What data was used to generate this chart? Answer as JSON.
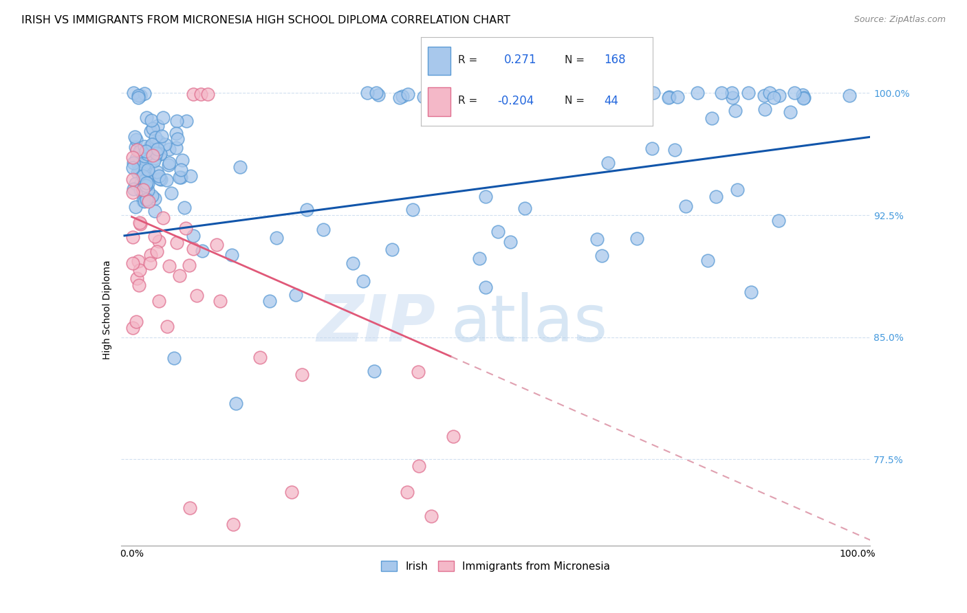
{
  "title": "IRISH VS IMMIGRANTS FROM MICRONESIA HIGH SCHOOL DIPLOMA CORRELATION CHART",
  "source": "Source: ZipAtlas.com",
  "ylabel": "High School Diploma",
  "watermark_zip": "ZIP",
  "watermark_atlas": "atlas",
  "legend_irish": "Irish",
  "legend_micro": "Immigrants from Micronesia",
  "R_irish": "0.271",
  "N_irish": "168",
  "R_micro": "-0.204",
  "N_micro": "44",
  "blue_fill": "#A8C8EC",
  "blue_edge": "#5B9BD5",
  "pink_fill": "#F4B8C8",
  "pink_edge": "#E07090",
  "trendline_blue": "#1155AA",
  "trendline_pink": "#E05878",
  "trendline_dashed": "#E0A0B0",
  "background_color": "#FFFFFF",
  "grid_color": "#CCDDEE",
  "right_tick_color": "#4499DD",
  "title_fontsize": 11.5,
  "tick_fontsize": 10,
  "ylabel_fontsize": 10,
  "y_tick_vals": [
    0.775,
    0.85,
    0.925,
    1.0
  ],
  "y_tick_labels": [
    "77.5%",
    "85.0%",
    "92.5%",
    "100.0%"
  ],
  "ylim_low": 0.722,
  "ylim_high": 1.012,
  "xlim_low": -0.015,
  "xlim_high": 1.018
}
